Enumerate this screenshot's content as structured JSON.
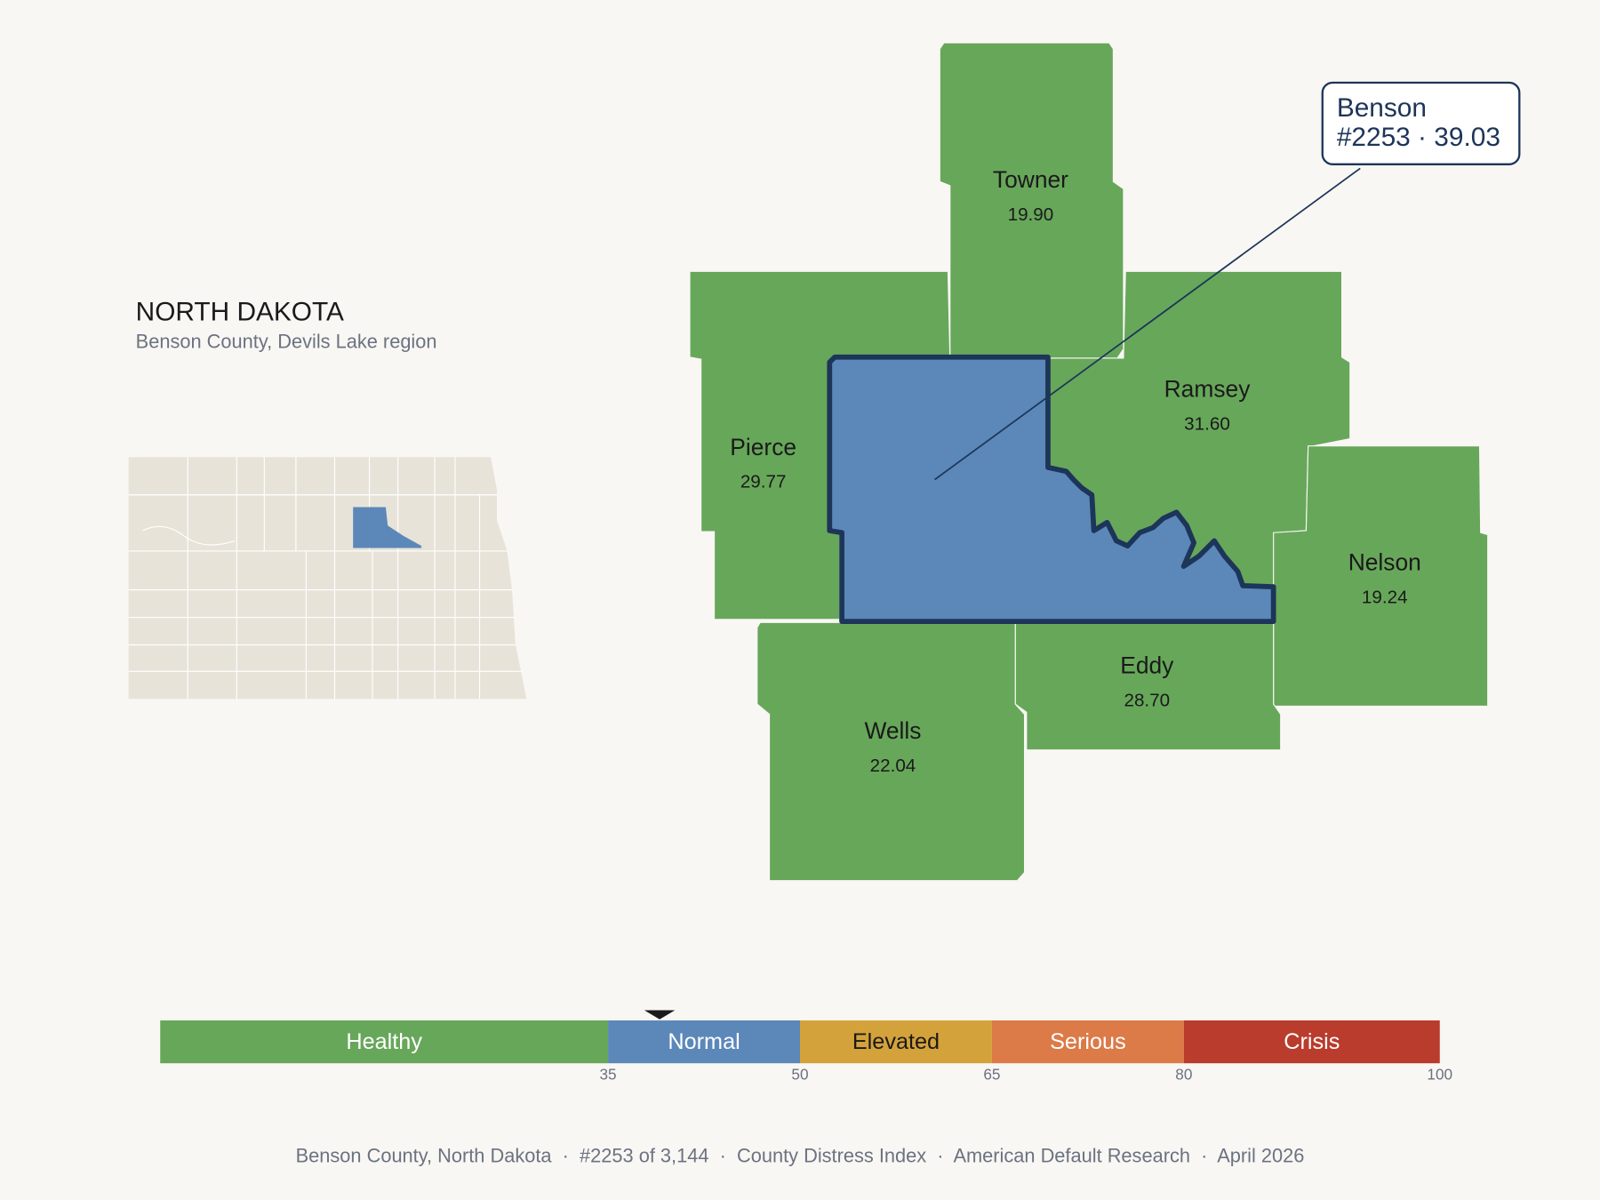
{
  "header": {
    "title": "NORTH DAKOTA",
    "subtitle": "Benson County, Devils Lake region"
  },
  "counties": [
    {
      "name": "Towner",
      "score": "19.90"
    },
    {
      "name": "Pierce",
      "score": "29.77"
    },
    {
      "name": "Ramsey",
      "score": "31.60"
    },
    {
      "name": "Nelson",
      "score": "19.24"
    },
    {
      "name": "Eddy",
      "score": "28.70"
    },
    {
      "name": "Wells",
      "score": "22.04"
    }
  ],
  "callout": {
    "name": "Benson",
    "detail": "#2253 · 39.03"
  },
  "scale": {
    "lim": [
      0,
      100
    ],
    "ticks": [
      35,
      50,
      65,
      80,
      100
    ],
    "marker": 39.03,
    "bands": [
      {
        "label": "Healthy",
        "color": "#67a75a",
        "to": 35
      },
      {
        "label": "Normal",
        "color": "#5b88b8",
        "to": 50
      },
      {
        "label": "Elevated",
        "color": "#d4a23a",
        "to": 65
      },
      {
        "label": "Serious",
        "color": "#dc7a48",
        "to": 80
      },
      {
        "label": "Crisis",
        "color": "#b93c2c",
        "to": 100
      }
    ]
  },
  "footer": "Benson County, North Dakota  ·  #2253 of 3,144  ·  County Distress Index  ·  American Default Research  ·  April 2026"
}
